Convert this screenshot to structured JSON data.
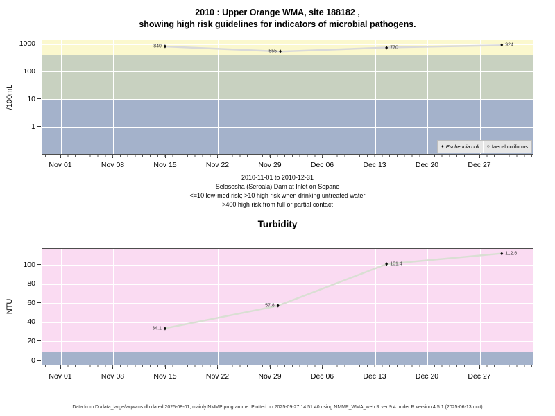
{
  "page": {
    "title_line1": "2010 : Upper Orange WMA, site 188182 ,",
    "title_line2": "showing high risk guidelines for indicators of microbial pathogens.",
    "footer": "Data from D:/data_large/wq/wms.db dated 2025-08-01, mainly NMMP programme. Plotted on 2025-09-27 14:51:40 using NMMP_WMA_web.R ver 9.4 under R version 4.5.1 (2025-06-13 ucrt)"
  },
  "chart_data": [
    {
      "type": "line",
      "title": "",
      "ylabel": "/100mL",
      "y_scale": "log10",
      "ylim_log": [
        0.1,
        1400
      ],
      "y_ticks": [
        {
          "value": 1000,
          "label": "1000"
        },
        {
          "value": 100,
          "label": "100"
        },
        {
          "value": 10,
          "label": "10"
        },
        {
          "value": 1,
          "label": "1"
        }
      ],
      "x_tick_labels": [
        "Nov 01",
        "Nov 08",
        "Nov 15",
        "Nov 22",
        "Nov 29",
        "Dec 06",
        "Dec 13",
        "Dec 20",
        "Dec 27"
      ],
      "x_minor_tick_interval_days": 1,
      "grid_color": "#ffffff",
      "risk_bands": [
        {
          "low": 400,
          "high": null,
          "color": "#FBF8CE"
        },
        {
          "low": 10,
          "high": 400,
          "color": "#C8D1C0"
        },
        {
          "low": null,
          "high": 10,
          "color": "#A4B2CB"
        }
      ],
      "series": [
        {
          "name": "Eschericia coli",
          "marker": "diamond-filled",
          "line_color": "#D9D9D9",
          "points": [
            {
              "x_day": 13.9,
              "value": 840,
              "label": "840",
              "label_side": "left"
            },
            {
              "x_day": 29.3,
              "value": 555,
              "label": "555",
              "label_side": "left"
            },
            {
              "x_day": 43.5,
              "value": 770,
              "label": "770",
              "label_side": "right"
            },
            {
              "x_day": 58.9,
              "value": 924,
              "label": "924",
              "label_side": "right"
            }
          ]
        },
        {
          "name": "faecal coliforms",
          "marker": "circle-open",
          "line_color": "#D9D9D9",
          "points": []
        }
      ],
      "legend": [
        {
          "marker": "diamond-filled",
          "label": "Eschericia coli",
          "italic": true
        },
        {
          "marker": "circle-open",
          "label": "faecal coliforms",
          "italic": false
        }
      ],
      "captions": [
        "2010-11-01 to 2010-12-31",
        "Selosesha (Seroala) Dam at Inlet on Sepane",
        "<=10 low-med risk; >10 high risk when drinking untreated water",
        ">400 high risk from full or partial contact"
      ]
    },
    {
      "type": "line",
      "title": "Turbidity",
      "ylabel": "NTU",
      "y_scale": "linear",
      "ylim": [
        -5,
        118
      ],
      "y_ticks": [
        {
          "value": 100,
          "label": "100"
        },
        {
          "value": 80,
          "label": "80"
        },
        {
          "value": 60,
          "label": "60"
        },
        {
          "value": 40,
          "label": "40"
        },
        {
          "value": 20,
          "label": "20"
        },
        {
          "value": 0,
          "label": "0"
        }
      ],
      "x_tick_labels": [
        "Nov 01",
        "Nov 08",
        "Nov 15",
        "Nov 22",
        "Nov 29",
        "Dec 06",
        "Dec 13",
        "Dec 20",
        "Dec 27"
      ],
      "x_minor_tick_interval_days": 1,
      "grid_color": "#ffffff",
      "background_color": "#FADBF2",
      "risk_bands": [
        {
          "low": null,
          "high": 10,
          "color": "#A4B2CB"
        }
      ],
      "series": [
        {
          "name": "Turbidity",
          "marker": "diamond-filled",
          "line_color": "#D9DFD3",
          "points": [
            {
              "x_day": 13.9,
              "value": 34.1,
              "label": "34.1",
              "label_side": "left"
            },
            {
              "x_day": 29.0,
              "value": 57.8,
              "label": "57.8",
              "label_side": "left"
            },
            {
              "x_day": 43.5,
              "value": 101.4,
              "label": "101.4",
              "label_side": "right"
            },
            {
              "x_day": 58.9,
              "value": 112.6,
              "label": "112.6",
              "label_side": "right"
            }
          ]
        }
      ]
    }
  ]
}
